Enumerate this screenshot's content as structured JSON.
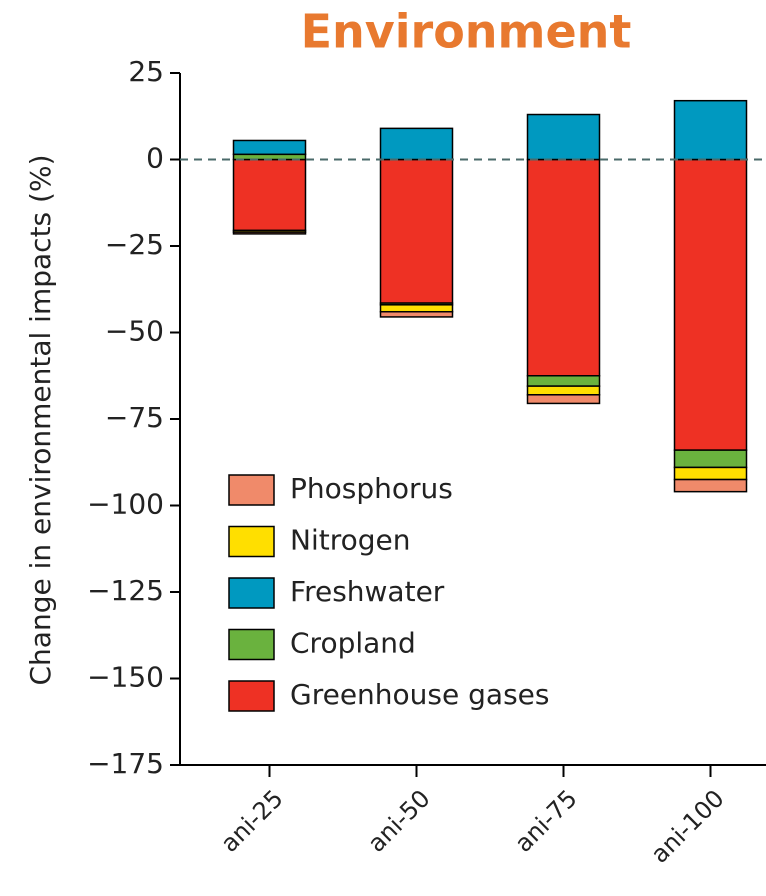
{
  "chart_data": {
    "type": "stacked_bar",
    "title": "Environment",
    "ylabel": "Change in environmental impacts (%)",
    "categories": [
      "ani-25",
      "ani-50",
      "ani-75",
      "ani-100"
    ],
    "series": [
      {
        "name": "Phosphorus",
        "color": "#f08a6a",
        "values": [
          -0.5,
          -1.5,
          -2.5,
          -3.5
        ]
      },
      {
        "name": "Nitrogen",
        "color": "#ffdf00",
        "values": [
          -0.5,
          -2,
          -2.5,
          -3.5
        ]
      },
      {
        "name": "Freshwater",
        "color": "#0099c0",
        "values": [
          4,
          9,
          13,
          17
        ]
      },
      {
        "name": "Cropland",
        "color": "#6ab23e",
        "values": [
          1.5,
          -0.5,
          -3,
          -5
        ]
      },
      {
        "name": "Greenhouse gases",
        "color": "#ee3124",
        "values": [
          -20.5,
          -41.5,
          -62.5,
          -84
        ]
      }
    ],
    "ylim": [
      -175,
      25
    ],
    "yticks": [
      {
        "value": -175,
        "label": "−175"
      },
      {
        "value": -150,
        "label": "−150"
      },
      {
        "value": -125,
        "label": "−125"
      },
      {
        "value": -100,
        "label": "−100"
      },
      {
        "value": -75,
        "label": "−75"
      },
      {
        "value": -50,
        "label": "−50"
      },
      {
        "value": -25,
        "label": "−25"
      },
      0,
      25
    ],
    "legend": "lower-left"
  }
}
